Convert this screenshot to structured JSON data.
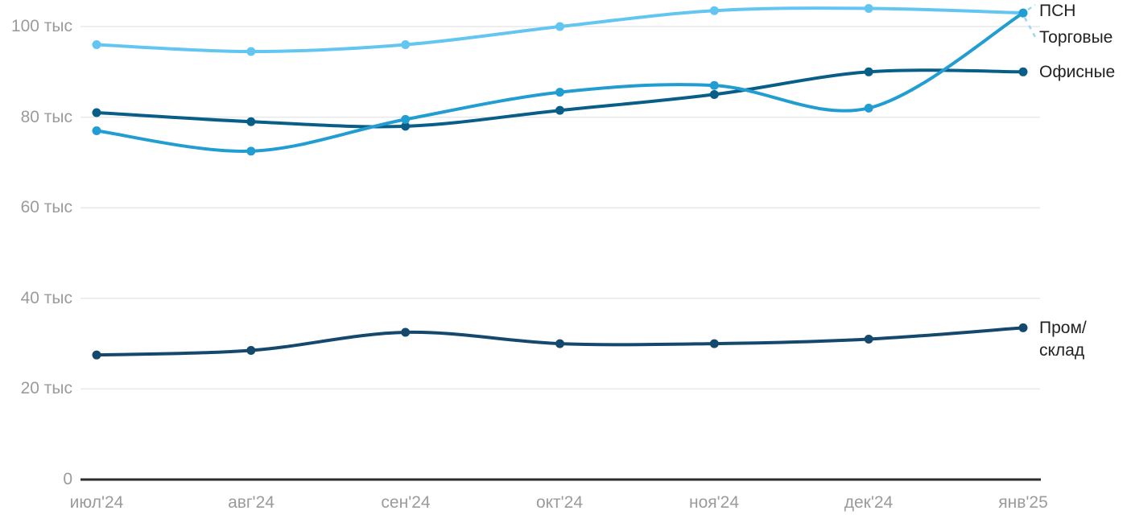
{
  "chart_data": {
    "type": "line",
    "title": "",
    "xlabel": "",
    "ylabel": "",
    "unit": "тыс",
    "categories": [
      "июл'24",
      "авг'24",
      "сен'24",
      "окт'24",
      "ноя'24",
      "дек'24",
      "янв'25"
    ],
    "y_ticks": [
      {
        "value": 0,
        "label": "0"
      },
      {
        "value": 20,
        "label": "20 тыс"
      },
      {
        "value": 40,
        "label": "40 тыс"
      },
      {
        "value": 60,
        "label": "60 тыс"
      },
      {
        "value": 80,
        "label": "80 тыс"
      },
      {
        "value": 100,
        "label": "100 тыс"
      }
    ],
    "ylim": [
      0,
      106
    ],
    "grid": "horizontal-only",
    "legend_position": "right-edge-direct-labels",
    "series": [
      {
        "name": "Торговые",
        "label": "Торговые",
        "color": "#63C6F1",
        "values": [
          96,
          94.5,
          96,
          100,
          103.5,
          104,
          103
        ]
      },
      {
        "name": "Офисные",
        "label": "Офисные",
        "color": "#095E87",
        "values": [
          81,
          79,
          78,
          81.5,
          85,
          90,
          90
        ]
      },
      {
        "name": "ПСН",
        "label": "ПСН",
        "color": "#229DD1",
        "values": [
          77,
          72.5,
          79.5,
          85.5,
          87,
          82,
          103
        ]
      },
      {
        "name": "Пром/склад",
        "label": "Пром/склад",
        "label_lines": [
          "Пром/",
          "склад"
        ],
        "color": "#14486D",
        "values": [
          27.5,
          28.5,
          32.5,
          30,
          30,
          31,
          33.5
        ]
      }
    ],
    "colors": {
      "grid": "#E8E8E8",
      "axis": "#2E2E2E",
      "tick_text": "#9B9B9B",
      "label_text": "#222222",
      "leader": "#9AD7F3"
    }
  }
}
